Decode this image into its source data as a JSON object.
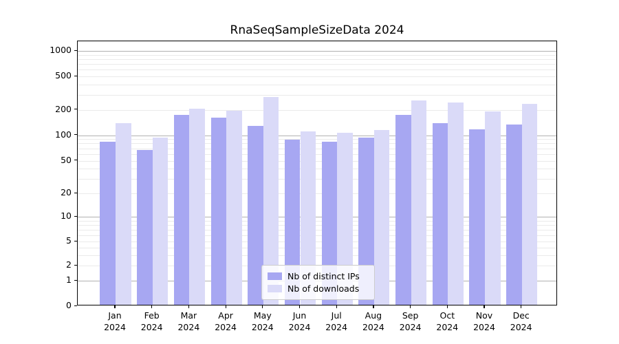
{
  "chart_data": {
    "type": "bar",
    "title": "RnaSeqSampleSizeData 2024",
    "categories": [
      "Jan",
      "Feb",
      "Mar",
      "Apr",
      "May",
      "Jun",
      "Jul",
      "Aug",
      "Sep",
      "Oct",
      "Nov",
      "Dec"
    ],
    "x_tick_year": "2024",
    "series": [
      {
        "name": "Nb of distinct IPs",
        "color": "#a7a7f2",
        "values": [
          80,
          65,
          169,
          155,
          125,
          86,
          80,
          90,
          167,
          134,
          114,
          128
        ]
      },
      {
        "name": "Nb of downloads",
        "color": "#dadaf8",
        "values": [
          133,
          91,
          199,
          186,
          272,
          107,
          102,
          110,
          247,
          233,
          184,
          227
        ]
      }
    ],
    "y_axis": {
      "scale": "symlog",
      "ticks": [
        0,
        1,
        2,
        5,
        10,
        20,
        50,
        100,
        200,
        500,
        1000
      ],
      "range": [
        0,
        1000
      ]
    },
    "legend": {
      "position": "lower center",
      "entries": [
        "Nb of distinct IPs",
        "Nb of downloads"
      ]
    },
    "grid": true
  },
  "colors": {
    "bar_dark": "#a7a7f2",
    "bar_light": "#dadaf8",
    "grid_major": "#b0b0b0",
    "grid_minor": "#eaeaea",
    "axis": "#000000"
  }
}
